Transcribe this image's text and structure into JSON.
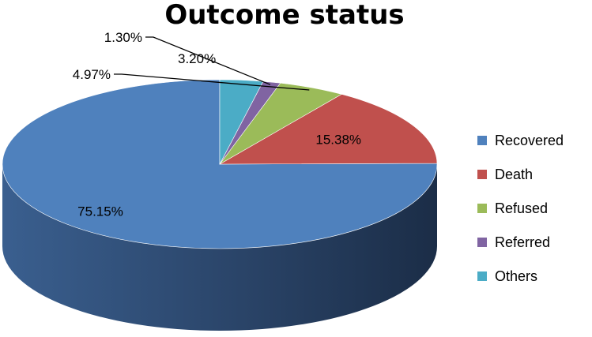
{
  "chart_data": {
    "type": "pie",
    "style": "3d",
    "title": "Outcome status",
    "legend_position": "right",
    "slices": [
      {
        "name": "Recovered",
        "value": 75.15,
        "label": "75.15%",
        "color": "#4F81BD"
      },
      {
        "name": "Death",
        "value": 15.38,
        "label": "15.38%",
        "color": "#C0504D"
      },
      {
        "name": "Refused",
        "value": 4.97,
        "label": "4.97%",
        "color": "#9BBB59"
      },
      {
        "name": "Referred",
        "value": 1.3,
        "label": "1.30%",
        "color": "#8064A2"
      },
      {
        "name": "Others",
        "value": 3.2,
        "label": "3.20%",
        "color": "#4BACC6"
      }
    ]
  }
}
